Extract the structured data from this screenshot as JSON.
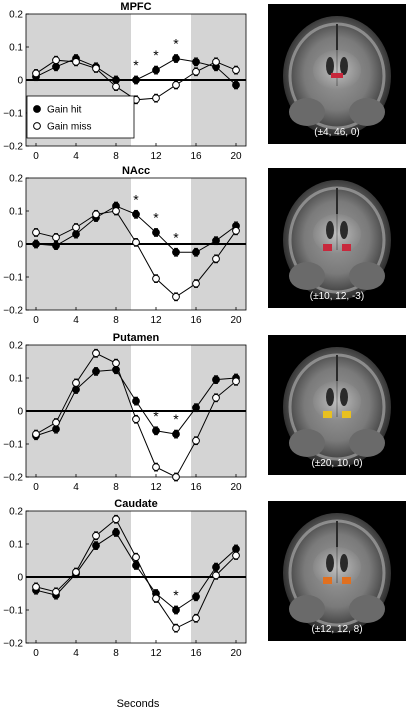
{
  "x_axis_title": "Seconds",
  "legend": {
    "series": [
      "Gain hit",
      "Gain miss"
    ]
  },
  "chart_data": [
    {
      "type": "line",
      "title": "MPFC",
      "xlabel": "Seconds",
      "ylabel": "",
      "xlim": [
        -1,
        21
      ],
      "ylim": [
        -0.2,
        0.2
      ],
      "xticks": [
        0,
        4,
        8,
        12,
        16,
        20
      ],
      "yticks": [
        -0.2,
        -0.1,
        0,
        0.1,
        0.2
      ],
      "shaded_regions": [
        [
          -1,
          9.5
        ],
        [
          15.5,
          21
        ]
      ],
      "x": [
        0,
        2,
        4,
        6,
        8,
        10,
        12,
        14,
        16,
        18,
        20
      ],
      "series": [
        {
          "name": "Gain hit",
          "marker": "filled-circle",
          "values": [
            0.01,
            0.04,
            0.065,
            0.04,
            0.0,
            0.0,
            0.03,
            0.065,
            0.055,
            0.04,
            -0.015
          ]
        },
        {
          "name": "Gain miss",
          "marker": "open-circle",
          "values": [
            0.02,
            0.06,
            0.055,
            0.035,
            -0.02,
            -0.06,
            -0.055,
            -0.015,
            0.025,
            0.055,
            0.03
          ]
        }
      ],
      "significance_x": [
        10,
        12,
        14
      ],
      "mpfc_legend": true,
      "brain_coord": "(±4, 46, 0)",
      "roi_color": "#c8283c",
      "roi_marks": "single"
    },
    {
      "type": "line",
      "title": "NAcc",
      "xlabel": "Seconds",
      "ylabel": "",
      "xlim": [
        -1,
        21
      ],
      "ylim": [
        -0.2,
        0.2
      ],
      "xticks": [
        0,
        4,
        8,
        12,
        16,
        20
      ],
      "yticks": [
        -0.2,
        -0.1,
        0,
        0.1,
        0.2
      ],
      "shaded_regions": [
        [
          -1,
          9.5
        ],
        [
          15.5,
          21
        ]
      ],
      "x": [
        0,
        2,
        4,
        6,
        8,
        10,
        12,
        14,
        16,
        18,
        20
      ],
      "series": [
        {
          "name": "Gain hit",
          "marker": "filled-circle",
          "values": [
            0.0,
            -0.005,
            0.03,
            0.08,
            0.115,
            0.09,
            0.035,
            -0.025,
            -0.025,
            0.01,
            0.055
          ]
        },
        {
          "name": "Gain miss",
          "marker": "open-circle",
          "values": [
            0.035,
            0.02,
            0.05,
            0.09,
            0.1,
            0.005,
            -0.105,
            -0.16,
            -0.12,
            -0.045,
            0.04
          ]
        }
      ],
      "significance_x": [
        10,
        12,
        14
      ],
      "brain_coord": "(±10, 12, -3)",
      "roi_color": "#c8283c",
      "roi_marks": "pair"
    },
    {
      "type": "line",
      "title": "Putamen",
      "xlabel": "Seconds",
      "ylabel": "",
      "xlim": [
        -1,
        21
      ],
      "ylim": [
        -0.2,
        0.2
      ],
      "xticks": [
        0,
        4,
        8,
        12,
        16,
        20
      ],
      "yticks": [
        -0.2,
        -0.1,
        0,
        0.1,
        0.2
      ],
      "shaded_regions": [
        [
          -1,
          9.5
        ],
        [
          15.5,
          21
        ]
      ],
      "x": [
        0,
        2,
        4,
        6,
        8,
        10,
        12,
        14,
        16,
        18,
        20
      ],
      "series": [
        {
          "name": "Gain hit",
          "marker": "filled-circle",
          "values": [
            -0.075,
            -0.055,
            0.065,
            0.12,
            0.125,
            0.03,
            -0.06,
            -0.07,
            0.01,
            0.095,
            0.1
          ]
        },
        {
          "name": "Gain miss",
          "marker": "open-circle",
          "values": [
            -0.07,
            -0.035,
            0.085,
            0.175,
            0.145,
            -0.025,
            -0.17,
            -0.2,
            -0.09,
            0.04,
            0.09
          ]
        }
      ],
      "significance_x": [
        12,
        14
      ],
      "brain_coord": "(±20, 10, 0)",
      "roi_color": "#e8c020",
      "roi_marks": "pair"
    },
    {
      "type": "line",
      "title": "Caudate",
      "xlabel": "Seconds",
      "ylabel": "",
      "xlim": [
        -1,
        21
      ],
      "ylim": [
        -0.2,
        0.2
      ],
      "xticks": [
        0,
        4,
        8,
        12,
        16,
        20
      ],
      "yticks": [
        -0.2,
        -0.1,
        0,
        0.1,
        0.2
      ],
      "shaded_regions": [
        [
          -1,
          9.5
        ],
        [
          15.5,
          21
        ]
      ],
      "x": [
        0,
        2,
        4,
        6,
        8,
        10,
        12,
        14,
        16,
        18,
        20
      ],
      "series": [
        {
          "name": "Gain hit",
          "marker": "filled-circle",
          "values": [
            -0.04,
            -0.055,
            0.01,
            0.095,
            0.135,
            0.035,
            -0.05,
            -0.1,
            -0.06,
            0.03,
            0.085
          ]
        },
        {
          "name": "Gain miss",
          "marker": "open-circle",
          "values": [
            -0.03,
            -0.045,
            0.015,
            0.125,
            0.175,
            0.06,
            -0.065,
            -0.155,
            -0.125,
            0.005,
            0.065
          ]
        }
      ],
      "significance_x": [
        14
      ],
      "brain_coord": "(±12, 12, 8)",
      "roi_color": "#e07020",
      "roi_marks": "pair"
    }
  ]
}
